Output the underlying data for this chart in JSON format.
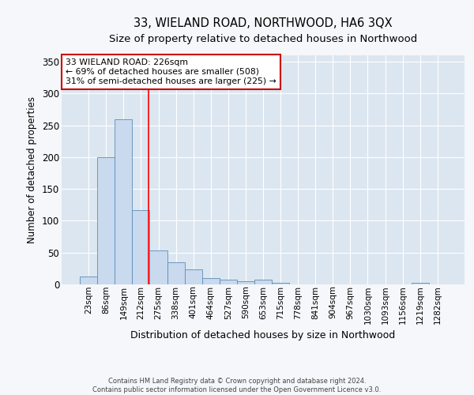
{
  "title": "33, WIELAND ROAD, NORTHWOOD, HA6 3QX",
  "subtitle": "Size of property relative to detached houses in Northwood",
  "xlabel": "Distribution of detached houses by size in Northwood",
  "ylabel": "Number of detached properties",
  "bar_labels": [
    "23sqm",
    "86sqm",
    "149sqm",
    "212sqm",
    "275sqm",
    "338sqm",
    "401sqm",
    "464sqm",
    "527sqm",
    "590sqm",
    "653sqm",
    "715sqm",
    "778sqm",
    "841sqm",
    "904sqm",
    "967sqm",
    "1030sqm",
    "1093sqm",
    "1156sqm",
    "1219sqm",
    "1282sqm"
  ],
  "bar_values": [
    12,
    200,
    260,
    117,
    53,
    35,
    24,
    10,
    8,
    5,
    7,
    3,
    0,
    0,
    0,
    0,
    0,
    0,
    0,
    3,
    0
  ],
  "bar_color": "#c9d9ee",
  "bar_edge_color": "#5b8db8",
  "ylim": [
    0,
    360
  ],
  "yticks": [
    0,
    50,
    100,
    150,
    200,
    250,
    300,
    350
  ],
  "red_line_x": 3.44,
  "annotation_line1": "33 WIELAND ROAD: 226sqm",
  "annotation_line2": "← 69% of detached houses are smaller (508)",
  "annotation_line3": "31% of semi-detached houses are larger (225) →",
  "annotation_box_color": "#ffffff",
  "annotation_box_edge": "#cc0000",
  "fig_bg_color": "#f5f7fa",
  "plot_bg_color": "#dce6f0",
  "grid_color": "#ffffff",
  "footnote": "Contains HM Land Registry data © Crown copyright and database right 2024.\nContains public sector information licensed under the Open Government Licence v3.0.",
  "title_fontsize": 10.5,
  "subtitle_fontsize": 9.5,
  "tick_fontsize": 7.5,
  "ylabel_fontsize": 8.5,
  "xlabel_fontsize": 9
}
